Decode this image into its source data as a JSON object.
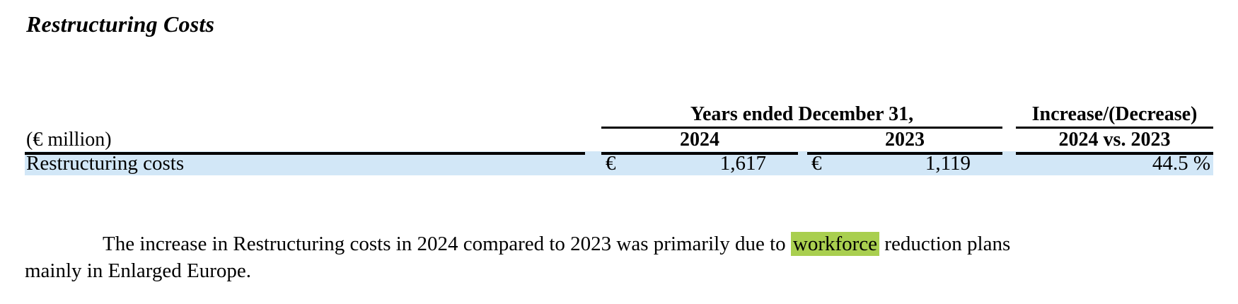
{
  "page": {
    "title": "Restructuring Costs"
  },
  "table": {
    "unit_label": "(€ million)",
    "group_header_years": "Years ended December 31,",
    "group_header_change": "Increase/(Decrease)",
    "col_2024": "2024",
    "col_2023": "2023",
    "col_change": "2024 vs. 2023",
    "row_highlight_color": "#d2e7f7",
    "rows": [
      {
        "label": "Restructuring costs",
        "currency_2024": "€",
        "value_2024": "1,617",
        "currency_2023": "€",
        "value_2023": "1,119",
        "change": "44.5 %"
      }
    ]
  },
  "paragraph": {
    "text_before": "The increase in Restructuring costs in 2024 compared to 2023 was primarily due to ",
    "highlighted_word": "workforce",
    "highlight_color": "#a9cf4f",
    "text_after": " reduction plans mainly in Enlarged Europe."
  }
}
